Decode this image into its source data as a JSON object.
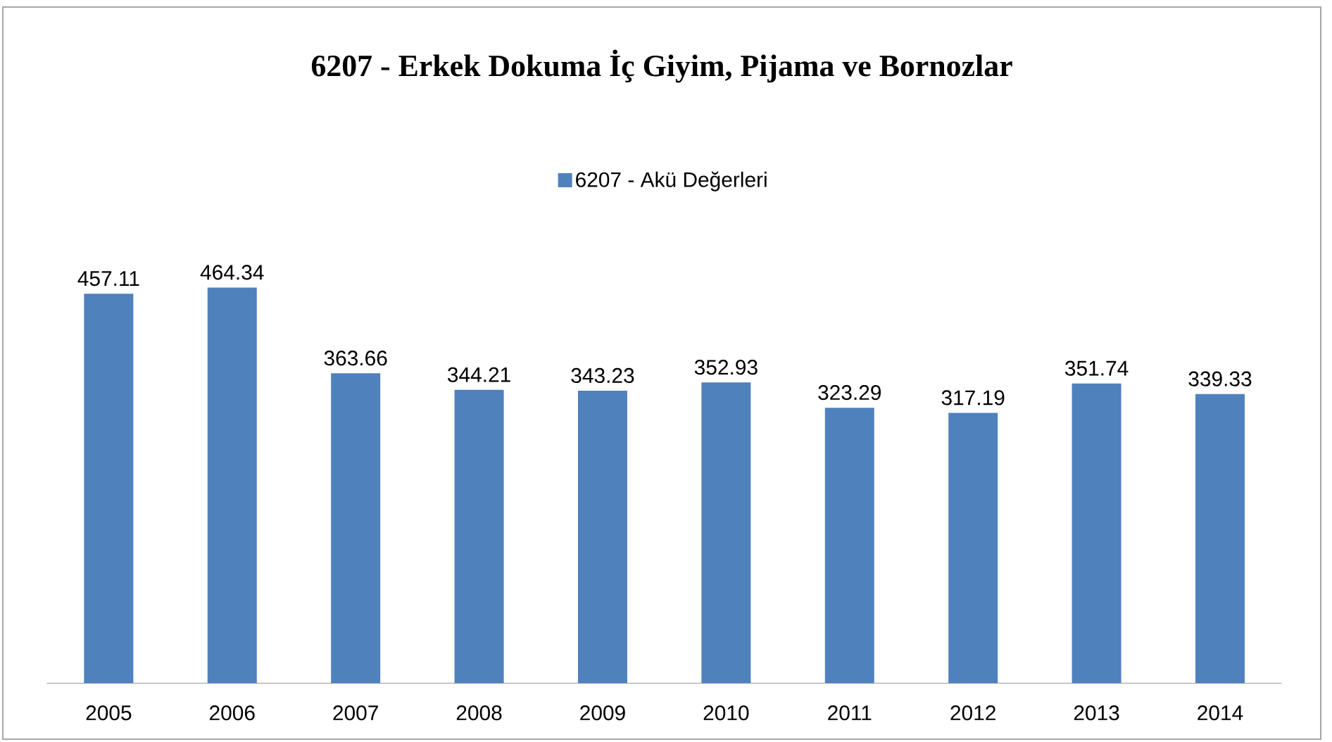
{
  "chart_data": {
    "type": "bar",
    "title": "6207 - Erkek Dokuma İç Giyim, Pijama ve Bornozlar",
    "categories": [
      "2005",
      "2006",
      "2007",
      "2008",
      "2009",
      "2010",
      "2011",
      "2012",
      "2013",
      "2014"
    ],
    "series": [
      {
        "name": "6207 - Akü Değerleri",
        "color": "#4f81bd",
        "values": [
          457.11,
          464.34,
          363.66,
          344.21,
          343.23,
          352.93,
          323.29,
          317.19,
          351.74,
          339.33
        ]
      }
    ],
    "data_labels": true,
    "legend": "top"
  }
}
